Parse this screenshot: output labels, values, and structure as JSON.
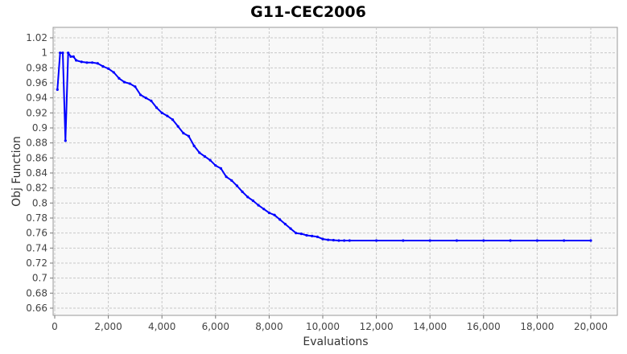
{
  "chart_data": {
    "type": "line",
    "title": "G11-CEC2006",
    "xlabel": "Evaluations",
    "ylabel": "Obj Function",
    "xlim": [
      0,
      21000
    ],
    "ylim": [
      0.65,
      1.03
    ],
    "x_ticks": [
      0,
      2000,
      4000,
      6000,
      8000,
      10000,
      12000,
      14000,
      16000,
      18000,
      20000
    ],
    "x_tick_labels": [
      "0",
      "2,000",
      "4,000",
      "6,000",
      "8,000",
      "10,000",
      "12,000",
      "14,000",
      "16,000",
      "18,000",
      "20,000"
    ],
    "y_ticks": [
      0.66,
      0.68,
      0.7,
      0.72,
      0.74,
      0.76,
      0.78,
      0.8,
      0.82,
      0.84,
      0.86,
      0.88,
      0.9,
      0.92,
      0.94,
      0.96,
      0.98,
      1.0,
      1.02
    ],
    "y_tick_labels": [
      "0.66",
      "0.68",
      "0.7",
      "0.72",
      "0.74",
      "0.76",
      "0.78",
      "0.8",
      "0.82",
      "0.84",
      "0.86",
      "0.88",
      "0.9",
      "0.92",
      "0.94",
      "0.96",
      "0.98",
      "1",
      "1.02"
    ],
    "grid": true,
    "line_color": "#0000ff",
    "series": [
      {
        "x": [
          100,
          200,
          300,
          400,
          500,
          600,
          700,
          800,
          1000,
          1200,
          1400,
          1600,
          1800,
          2000,
          2200,
          2400,
          2600,
          2800,
          3000,
          3200,
          3400,
          3600,
          3800,
          4000,
          4200,
          4400,
          4600,
          4800,
          5000,
          5200,
          5400,
          5600,
          5800,
          6000,
          6200,
          6400,
          6600,
          6800,
          7000,
          7200,
          7400,
          7600,
          7800,
          8000,
          8200,
          8400,
          8600,
          8800,
          9000,
          9200,
          9400,
          9600,
          9800,
          10000,
          10200,
          10400,
          10600,
          10800,
          11000,
          12000,
          13000,
          14000,
          15000,
          16000,
          17000,
          18000,
          19000,
          20000
        ],
        "y": [
          0.951,
          1.0,
          1.0,
          0.883,
          1.0,
          0.995,
          0.995,
          0.99,
          0.988,
          0.987,
          0.987,
          0.986,
          0.982,
          0.979,
          0.974,
          0.966,
          0.961,
          0.959,
          0.955,
          0.944,
          0.94,
          0.936,
          0.927,
          0.92,
          0.916,
          0.911,
          0.902,
          0.893,
          0.889,
          0.876,
          0.867,
          0.862,
          0.857,
          0.85,
          0.846,
          0.835,
          0.83,
          0.823,
          0.815,
          0.808,
          0.803,
          0.797,
          0.792,
          0.787,
          0.784,
          0.778,
          0.772,
          0.766,
          0.76,
          0.759,
          0.757,
          0.756,
          0.755,
          0.752,
          0.751,
          0.7505,
          0.75,
          0.75,
          0.75,
          0.75,
          0.75,
          0.75,
          0.75,
          0.75,
          0.75,
          0.75,
          0.75,
          0.75
        ]
      }
    ]
  }
}
